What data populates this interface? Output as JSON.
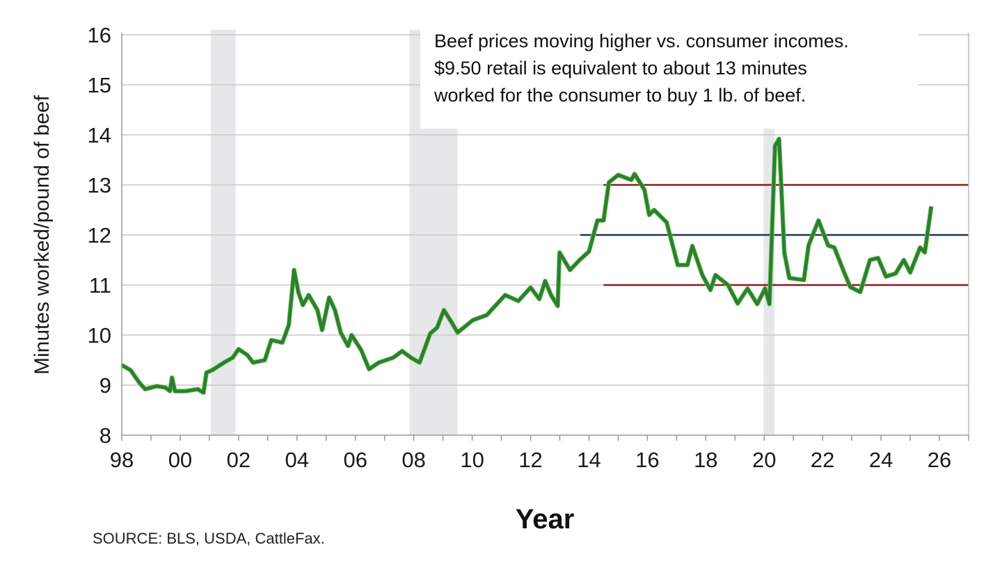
{
  "chart_data": {
    "type": "line",
    "title": "",
    "xlabel": "Year",
    "ylabel": "Minutes worked/pound of beef",
    "xlim": [
      1998,
      2027
    ],
    "ylim": [
      8,
      16
    ],
    "x_ticks": [
      1998,
      2000,
      2002,
      2004,
      2006,
      2008,
      2010,
      2012,
      2014,
      2016,
      2018,
      2020,
      2022,
      2024,
      2026
    ],
    "x_tick_labels": [
      "98",
      "00",
      "02",
      "04",
      "06",
      "08",
      "10",
      "12",
      "14",
      "16",
      "18",
      "20",
      "22",
      "24",
      "26"
    ],
    "y_ticks": [
      8,
      9,
      10,
      11,
      12,
      13,
      14,
      15,
      16
    ],
    "y_tick_labels": [
      "8",
      "9",
      "10",
      "11",
      "12",
      "13",
      "14",
      "15",
      "16"
    ],
    "grid": "horizontal",
    "annotation": [
      "Beef prices moving higher vs. consumer incomes.",
      "$9.50 retail is equivalent to about 13 minutes",
      "worked for the consumer to buy 1 lb. of beef."
    ],
    "source": "SOURCE: BLS, USDA, CattleFax.",
    "recessions": [
      [
        2001.05,
        2001.9
      ],
      [
        2007.85,
        2009.5
      ],
      [
        2019.98,
        2020.35
      ]
    ],
    "reference_lines": [
      {
        "value": 13,
        "from": 2014.5,
        "color": "#8b1a1a"
      },
      {
        "value": 12,
        "from": 2013.7,
        "color": "#1c3557"
      },
      {
        "value": 11,
        "from": 2014.5,
        "color": "#8b1a1a"
      }
    ],
    "colors": {
      "line": "#2e7d32",
      "line_edge": "#5fbf4a",
      "recession": "#e6e7e9",
      "grid": "#c8c8c8"
    },
    "series": [
      {
        "x": [
          1998.0,
          1998.3,
          1998.6,
          1998.8,
          1999.2,
          1999.5,
          1999.65,
          1999.72,
          1999.82,
          2000.2,
          2000.6,
          2000.8,
          2000.9,
          2001.1,
          2001.5,
          2001.8,
          2002.0,
          2002.3,
          2002.5,
          2002.9,
          2003.12,
          2003.5,
          2003.72,
          2003.9,
          2004.05,
          2004.2,
          2004.4,
          2004.7,
          2004.86,
          2005.1,
          2005.3,
          2005.5,
          2005.75,
          2005.87,
          2006.2,
          2006.47,
          2006.8,
          2007.3,
          2007.6,
          2007.9,
          2008.2,
          2008.56,
          2008.8,
          2009.03,
          2009.3,
          2009.5,
          2010.03,
          2010.5,
          2011.13,
          2011.58,
          2012.0,
          2012.3,
          2012.5,
          2012.7,
          2012.93,
          2012.99,
          2013.35,
          2013.68,
          2014.0,
          2014.29,
          2014.5,
          2014.68,
          2015.0,
          2015.45,
          2015.56,
          2015.9,
          2016.06,
          2016.23,
          2016.66,
          2017.04,
          2017.37,
          2017.54,
          2017.88,
          2018.16,
          2018.33,
          2018.76,
          2019.09,
          2019.43,
          2019.76,
          2020.03,
          2020.18,
          2020.37,
          2020.51,
          2020.69,
          2020.86,
          2021.36,
          2021.52,
          2021.86,
          2022.19,
          2022.4,
          2022.74,
          2022.95,
          2023.29,
          2023.62,
          2023.9,
          2024.17,
          2024.5,
          2024.78,
          2025.0,
          2025.34,
          2025.5,
          2025.72
        ],
        "y": [
          9.4,
          9.3,
          9.05,
          8.92,
          8.98,
          8.95,
          8.88,
          9.15,
          8.88,
          8.88,
          8.92,
          8.85,
          9.25,
          9.3,
          9.45,
          9.55,
          9.72,
          9.6,
          9.45,
          9.5,
          9.9,
          9.85,
          10.2,
          11.3,
          10.85,
          10.6,
          10.8,
          10.5,
          10.1,
          10.75,
          10.5,
          10.05,
          9.78,
          10.0,
          9.7,
          9.32,
          9.45,
          9.55,
          9.68,
          9.55,
          9.45,
          10.03,
          10.15,
          10.5,
          10.25,
          10.05,
          10.3,
          10.4,
          10.8,
          10.68,
          10.95,
          10.72,
          11.08,
          10.8,
          10.58,
          11.65,
          11.3,
          11.5,
          11.67,
          12.29,
          12.29,
          13.05,
          13.2,
          13.1,
          13.22,
          12.9,
          12.4,
          12.5,
          12.25,
          11.4,
          11.4,
          11.78,
          11.2,
          10.9,
          11.2,
          11.0,
          10.63,
          10.93,
          10.62,
          10.93,
          10.62,
          13.78,
          13.92,
          11.65,
          11.14,
          11.1,
          11.79,
          12.29,
          11.79,
          11.75,
          11.25,
          10.96,
          10.86,
          11.5,
          11.54,
          11.17,
          11.23,
          11.5,
          11.25,
          11.75,
          11.65,
          12.57
        ]
      }
    ]
  }
}
